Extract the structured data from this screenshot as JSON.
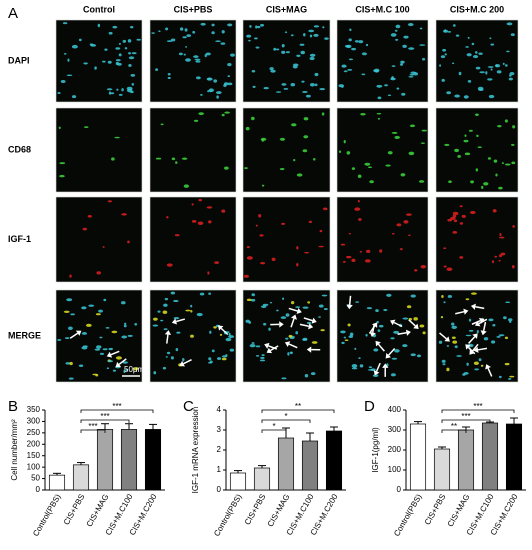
{
  "figure": {
    "panel_labels": [
      "A",
      "B",
      "C",
      "D"
    ],
    "columns": [
      "Control",
      "CIS+PBS",
      "CIS+MAG",
      "CIS+M.C 100",
      "CIS+M.C 200"
    ],
    "rows": [
      "DAPI",
      "CD68",
      "IGF-1",
      "MERGE"
    ],
    "scale_bar": "50μm"
  },
  "chart_data": [
    {
      "type": "bar",
      "y_label": "Cell number/mm²",
      "categories": [
        "Control(PBS)",
        "CIS+PBS",
        "CIS+MAG",
        "CIS+M.C100",
        "CIS+M.C200"
      ],
      "values": [
        65,
        110,
        265,
        265,
        265
      ],
      "errors": [
        8,
        10,
        25,
        25,
        22
      ],
      "colors": [
        "#ffffff",
        "#d9d9d9",
        "#a6a6a6",
        "#808080",
        "#000000"
      ],
      "ylim": [
        0,
        350
      ],
      "yticks": [
        0,
        50,
        100,
        150,
        200,
        250,
        300,
        350
      ],
      "annotations": [
        {
          "label": "***",
          "between": [
            1,
            2
          ]
        },
        {
          "label": "***",
          "between": [
            1,
            3
          ]
        },
        {
          "label": "***",
          "between": [
            1,
            4
          ]
        }
      ]
    },
    {
      "type": "bar",
      "y_label": "IGF-1 mRNA expression",
      "categories": [
        "Control(PBS)",
        "CIS+PBS",
        "CIS+MAG",
        "CIS+M.C100",
        "CIS+M.C200"
      ],
      "values": [
        0.85,
        1.1,
        2.6,
        2.45,
        2.95
      ],
      "errors": [
        0.12,
        0.12,
        0.5,
        0.4,
        0.2
      ],
      "colors": [
        "#ffffff",
        "#d9d9d9",
        "#a6a6a6",
        "#808080",
        "#000000"
      ],
      "ylim": [
        0,
        4
      ],
      "yticks": [
        0,
        1,
        2,
        3,
        4
      ],
      "annotations": [
        {
          "label": "*",
          "between": [
            1,
            2
          ]
        },
        {
          "label": "*",
          "between": [
            1,
            3
          ]
        },
        {
          "label": "**",
          "between": [
            1,
            4
          ]
        }
      ]
    },
    {
      "type": "bar",
      "y_label": "IGF-1(pg/ml)",
      "categories": [
        "Control(PBS)",
        "CIS+PBS",
        "CIS+MAG",
        "CIS+M.C100",
        "CIS+M.C200"
      ],
      "values": [
        330,
        205,
        300,
        335,
        330
      ],
      "errors": [
        12,
        10,
        15,
        5,
        30
      ],
      "colors": [
        "#ffffff",
        "#d9d9d9",
        "#a6a6a6",
        "#808080",
        "#000000"
      ],
      "ylim": [
        0,
        400
      ],
      "yticks": [
        0,
        100,
        200,
        300,
        400
      ],
      "annotations": [
        {
          "label": "**",
          "between": [
            1,
            2
          ]
        },
        {
          "label": "***",
          "between": [
            1,
            3
          ]
        },
        {
          "label": "***",
          "between": [
            1,
            4
          ]
        }
      ]
    }
  ]
}
